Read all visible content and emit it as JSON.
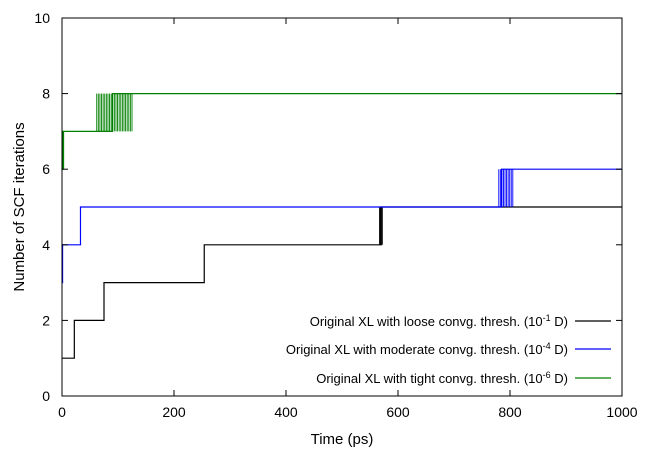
{
  "chart_data": {
    "type": "line",
    "title": "",
    "xlabel": "Time (ps)",
    "ylabel": "Number of SCF iterations",
    "xlim": [
      0,
      1000
    ],
    "ylim": [
      0,
      10
    ],
    "xticks": [
      0,
      200,
      400,
      600,
      800,
      1000
    ],
    "yticks": [
      0,
      2,
      4,
      6,
      8,
      10
    ],
    "grid": false,
    "legend_position": "bottom-right",
    "series": [
      {
        "name": "Original XL with loose convg. thresh. (10",
        "name_exp": "-1",
        "name_suffix": " D)",
        "color": "#000000",
        "steps": [
          [
            0,
            1
          ],
          [
            22,
            2
          ],
          [
            75,
            3
          ],
          [
            254,
            4
          ],
          [
            570,
            5
          ],
          [
            1000,
            5
          ]
        ],
        "oscillations": [
          {
            "from": 567,
            "to": 572,
            "lo": 4,
            "hi": 5
          }
        ]
      },
      {
        "name": "Original XL with moderate convg. thresh. (10",
        "name_exp": "-4",
        "name_suffix": " D)",
        "color": "#0000ff",
        "steps": [
          [
            0,
            3
          ],
          [
            1,
            4
          ],
          [
            33,
            5
          ],
          [
            785,
            6
          ],
          [
            1000,
            6
          ]
        ],
        "oscillations": [
          {
            "from": 780,
            "to": 805,
            "lo": 5,
            "hi": 6
          }
        ]
      },
      {
        "name": "Original XL with tight convg. thresh. (10",
        "name_exp": "-6",
        "name_suffix": " D)",
        "color": "#008000",
        "steps": [
          [
            0,
            6
          ],
          [
            2,
            7
          ],
          [
            90,
            8
          ],
          [
            1000,
            8
          ]
        ],
        "oscillations": [
          {
            "from": 0,
            "to": 3,
            "lo": 6,
            "hi": 7
          },
          {
            "from": 62,
            "to": 125,
            "lo": 7,
            "hi": 8
          }
        ]
      }
    ]
  }
}
